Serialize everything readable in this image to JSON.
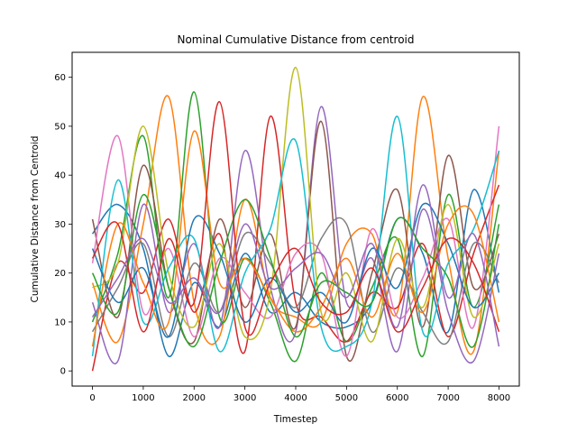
{
  "chart_data": {
    "type": "line",
    "title": "Nominal Cumulative Distance from centroid",
    "xlabel": "Timestep",
    "ylabel": "Cumulative Distance from Centroid",
    "xlim": [
      -400,
      8400
    ],
    "ylim": [
      -3.1,
      65.1
    ],
    "x_ticks": [
      0,
      1000,
      2000,
      3000,
      4000,
      5000,
      6000,
      7000,
      8000
    ],
    "y_ticks": [
      0,
      10,
      20,
      30,
      40,
      50,
      60
    ],
    "x_tick_labels": [
      "0",
      "1000",
      "2000",
      "3000",
      "4000",
      "5000",
      "6000",
      "7000",
      "8000"
    ],
    "y_tick_labels": [
      "0",
      "10",
      "20",
      "30",
      "40",
      "50",
      "60"
    ],
    "grid": false,
    "legend": "none",
    "x": [
      0,
      500,
      1000,
      1500,
      2000,
      2500,
      3000,
      3500,
      4000,
      4500,
      5000,
      5500,
      6000,
      6500,
      7000,
      7500,
      8000
    ],
    "series": [
      {
        "color": "#1f77b4",
        "values": [
          28,
          34,
          25,
          3,
          18,
          9,
          24,
          12,
          16,
          10,
          9,
          14,
          31,
          24,
          8,
          37,
          16
        ]
      },
      {
        "color": "#ff7f0e",
        "values": [
          18,
          6,
          30,
          56,
          14,
          7,
          35,
          15,
          11,
          10,
          26,
          28,
          12,
          56,
          23,
          4,
          45
        ]
      },
      {
        "color": "#2ca02c",
        "values": [
          10,
          24,
          48,
          15,
          57,
          11,
          23,
          14,
          2,
          20,
          6,
          17,
          27,
          3,
          36,
          13,
          34
        ]
      },
      {
        "color": "#d62728",
        "values": [
          0,
          22,
          16,
          31,
          12,
          28,
          4,
          52,
          14,
          11,
          6,
          16,
          13,
          26,
          7,
          24,
          38
        ]
      },
      {
        "color": "#9467bd",
        "values": [
          14,
          2,
          34,
          12,
          26,
          9,
          45,
          17,
          8,
          54,
          14,
          23,
          4,
          33,
          12,
          2,
          24
        ]
      },
      {
        "color": "#8c564b",
        "values": [
          31,
          11,
          42,
          17,
          6,
          31,
          13,
          28,
          9,
          51,
          3,
          20,
          37,
          9,
          44,
          17,
          28
        ]
      },
      {
        "color": "#e377c2",
        "values": [
          22,
          48,
          12,
          25,
          7,
          23,
          16,
          11,
          24,
          24,
          3,
          29,
          11,
          19,
          31,
          9,
          50
        ]
      },
      {
        "color": "#7f7f7f",
        "values": [
          8,
          17,
          26,
          7,
          22,
          12,
          28,
          22,
          13,
          27,
          30,
          8,
          21,
          12,
          6,
          26,
          18
        ]
      },
      {
        "color": "#bcbd22",
        "values": [
          17,
          22,
          50,
          20,
          9,
          26,
          7,
          16,
          62,
          12,
          20,
          6,
          27,
          13,
          34,
          11,
          26
        ]
      },
      {
        "color": "#17becf",
        "values": [
          3,
          39,
          10,
          21,
          27,
          4,
          20,
          29,
          47,
          9,
          5,
          14,
          52,
          8,
          22,
          29,
          45
        ]
      },
      {
        "color": "#1f77b4",
        "values": [
          25,
          14,
          21,
          7,
          31,
          24,
          10,
          19,
          12,
          16,
          10,
          25,
          17,
          34,
          26,
          13,
          20
        ]
      },
      {
        "color": "#ff7f0e",
        "values": [
          5,
          30,
          18,
          10,
          49,
          18,
          23,
          15,
          8,
          13,
          23,
          11,
          24,
          12,
          30,
          32,
          10
        ]
      },
      {
        "color": "#2ca02c",
        "values": [
          20,
          12,
          36,
          17,
          5,
          22,
          35,
          23,
          7,
          18,
          16,
          14,
          31,
          25,
          19,
          5,
          30
        ]
      },
      {
        "color": "#d62728",
        "values": [
          23,
          30,
          8,
          27,
          14,
          55,
          9,
          18,
          25,
          14,
          12,
          21,
          8,
          17,
          27,
          22,
          8
        ]
      },
      {
        "color": "#9467bd",
        "values": [
          11,
          19,
          27,
          14,
          19,
          12,
          30,
          17,
          21,
          24,
          15,
          26,
          9,
          38,
          15,
          28,
          5
        ]
      }
    ]
  }
}
